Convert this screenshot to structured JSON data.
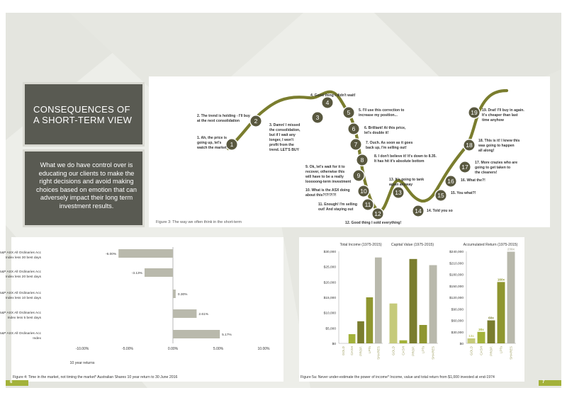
{
  "page": {
    "title": "CONSEQUENCES OF A SHORT-TERM VIEW",
    "title_line1": "CONSEQUENCES OF",
    "title_line2": "A SHORT-TERM VIEW",
    "intro_lines": [
      "What we do have control over is",
      "educating our clients to make the",
      "right decisions and avoid making",
      "choices based on emotion that can",
      "adversely impact their long term",
      "investment results."
    ],
    "page_left": "6",
    "page_right": "7"
  },
  "colors": {
    "olive": "#7a7d2e",
    "olive_light": "#c5ca7a",
    "olive_bright": "#a3b23a",
    "grey_bar": "#b9b9ac",
    "dark_panel": "#595a52",
    "background": "#edeee9"
  },
  "emotion_figure": {
    "caption": "Figure 3: The way we often think in the short-term",
    "points": [
      {
        "n": "1",
        "lines": [
          "1. Ah, the price is",
          "going up, let's",
          "watch the market"
        ]
      },
      {
        "n": "2",
        "lines": [
          "2. The trend is holding - I'll buy",
          "at the next consolidation"
        ]
      },
      {
        "n": "3",
        "lines": [
          "3. Damn! I missed",
          "the consolidation,",
          "but if I wait any",
          "longer, I won't",
          "profit from the",
          "trend. LET'S BUY"
        ]
      },
      {
        "n": "4",
        "lines": [
          "4. Good thing I didn't wait!"
        ]
      },
      {
        "n": "5",
        "lines": [
          "5. I'll use this correction to",
          "increase my position..."
        ]
      },
      {
        "n": "6",
        "lines": [
          "6. Brilliant! At this price,",
          "let's double it!"
        ]
      },
      {
        "n": "7",
        "lines": [
          "7. Ouch. As soon as it goes",
          "back up, I'm selling out!"
        ]
      },
      {
        "n": "8",
        "lines": [
          "8. I don't believe it! It's down to 8.35.",
          "It has hit it's absolute bottom"
        ]
      },
      {
        "n": "9",
        "lines": [
          "9. Ok, let's wait for it to",
          "recover, otherwise this",
          "will have to be a really",
          "looooong-term investment"
        ]
      },
      {
        "n": "10",
        "lines": [
          "10. What is the ASX doing",
          "about this?!?!?!?!"
        ]
      },
      {
        "n": "11",
        "lines": [
          "11. Enough! I'm selling",
          "out! And staying out"
        ]
      },
      {
        "n": "12",
        "lines": [
          "12. Good thing I sold everything!"
        ]
      },
      {
        "n": "13",
        "lines": [
          "13. It's going to tank",
          "again anyway"
        ]
      },
      {
        "n": "14",
        "lines": [
          "14. Told you so"
        ]
      },
      {
        "n": "15",
        "lines": [
          "15. You what?!"
        ]
      },
      {
        "n": "16",
        "lines": [
          "16. What the?!"
        ]
      },
      {
        "n": "17",
        "lines": [
          "17. More crazies who are",
          "going to get taken to",
          "the cleaners!"
        ]
      },
      {
        "n": "18",
        "lines": [
          "18. This is it! I knew this",
          "was going to happen",
          "all along!"
        ]
      },
      {
        "n": "19",
        "lines": [
          "19. Drat! I'll buy in again.",
          "It's cheaper than last",
          "time anyhow"
        ]
      }
    ]
  },
  "chart_data": [
    {
      "type": "bar",
      "orientation": "horizontal",
      "title": "",
      "categories": [
        [
          "S&P ASX All Ordinaries Acc",
          "Index less 30 best days"
        ],
        [
          "S&P ASX All Ordinaries Acc",
          "Index less 20 best days"
        ],
        [
          "S&P ASX All Ordinaries Acc",
          "Index less 10 best days"
        ],
        [
          "S&P ASX All Ordinaries Acc",
          "Index less 5 best days"
        ],
        [
          "S&P ASX All Ordinaries Acc",
          "Index"
        ]
      ],
      "values": [
        -6.0,
        -3.13,
        0.3,
        2.61,
        5.17
      ],
      "value_labels": [
        "-6.00%",
        "-3.13%",
        "0.30%",
        "2.61%",
        "5.17%"
      ],
      "xlabel": "10 year returns",
      "xlim": [
        -10,
        10
      ],
      "xticks": [
        -10,
        -5,
        0,
        5,
        10
      ],
      "xtick_labels": [
        "-10.00%",
        "-5.00%",
        "0.00%",
        "5.00%",
        "10.00%"
      ],
      "caption": "Figure 4: Time in the market, not timing the market* Australian Shares 10 year return to 30 June 2016"
    },
    {
      "type": "bar",
      "title": "Total Income (1975-2015)",
      "categories": [
        "GOLD",
        "CASH",
        "PROP.",
        "LPTs",
        "SHARES"
      ],
      "values": [
        0,
        3000,
        7200,
        15000,
        28000
      ],
      "ylim": [
        0,
        30000
      ],
      "yticks": [
        0,
        5000,
        10000,
        15000,
        20000,
        25000,
        30000
      ],
      "ytick_labels": [
        "$0",
        "$5,000",
        "$10,000",
        "$15,000",
        "$20,000",
        "$25,000",
        "$30,000"
      ]
    },
    {
      "type": "bar",
      "title": "Capital Value (1975-2015)",
      "categories": [
        "GOLD",
        "CASH",
        "PROP.",
        "LPTs",
        "SHARES"
      ],
      "values": [
        13000,
        1000,
        27500,
        6000,
        25500
      ],
      "ylim": [
        0,
        30000
      ],
      "caption": "Figure 5a: Never under-estimate the power of income* Income, value and total return from $1,000 invested at end-1974"
    },
    {
      "type": "bar",
      "title": "Accumulated Return (1975-2015)",
      "categories": [
        "GOLD",
        "CASH",
        "PROP.",
        "LPTs",
        "SHARES"
      ],
      "values": [
        13,
        30,
        60,
        160,
        239
      ],
      "value_labels": [
        "13x",
        "30x",
        "60x",
        "160x",
        "239x"
      ],
      "ylim": [
        0,
        240000
      ],
      "yticks": [
        0,
        30000,
        60000,
        90000,
        120000,
        150000,
        180000,
        210000,
        240000
      ],
      "ytick_labels": [
        "$0",
        "$30,000",
        "$60,000",
        "$90,000",
        "$120,000",
        "$150,000",
        "$180,000",
        "$210,000",
        "$240,000"
      ]
    }
  ]
}
